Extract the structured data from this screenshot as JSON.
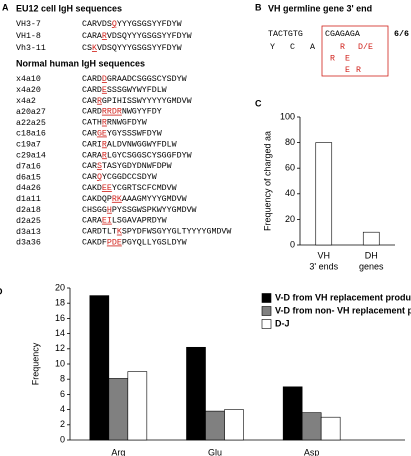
{
  "panel_labels": [
    "A",
    "B",
    "C",
    "D"
  ],
  "panel_a": {
    "eu12_title": "EU12 cell IgH sequences",
    "eu12_rows": [
      {
        "name": "VH3-7",
        "parts": [
          "CARVDS",
          "Q",
          "YYYGSGSYYFDYW"
        ]
      },
      {
        "name": "VH1-8",
        "parts": [
          "CARA",
          "R",
          "VDSQYYYGSGSYYFDYW"
        ]
      },
      {
        "name": "Vh3-11",
        "parts": [
          "CS",
          "K",
          "VDSQYYYGSGSYYFDYW"
        ]
      }
    ],
    "normal_title": "Normal human IgH sequences",
    "normal_rows": [
      {
        "name": "x4a10",
        "parts": [
          "CARD",
          "D",
          "GRAADCSGGSCYSDYW"
        ]
      },
      {
        "name": "x4a20",
        "parts": [
          "CARD",
          "E",
          "SSSGWYWYFDLW"
        ]
      },
      {
        "name": "x4a2",
        "parts": [
          "CAR",
          "R",
          "GPIHISSWYYYYYGMDVW"
        ]
      },
      {
        "name": "a20a27",
        "parts": [
          "CARD",
          "RRDR",
          "NWGYYFDY"
        ]
      },
      {
        "name": "a22a25",
        "parts": [
          "CATH",
          "R",
          "RNWGFDYW"
        ]
      },
      {
        "name": "c18a16",
        "parts": [
          "CAR",
          "GE",
          "YGYSSSWFDYW"
        ]
      },
      {
        "name": "c19a7",
        "parts": [
          "CARI",
          "R",
          "ALDVNWGGWYFDLW"
        ]
      },
      {
        "name": "c29a14",
        "parts": [
          "CARA",
          "R",
          "LGYCSGGSCYSGGFDYW"
        ]
      },
      {
        "name": "d7a16",
        "parts": [
          "CAR",
          "S",
          "TASYGDYDNWFDPW"
        ]
      },
      {
        "name": "d6a15",
        "parts": [
          "CAR",
          "Q",
          "YCGGDCCSDYW"
        ]
      },
      {
        "name": "d4a26",
        "parts": [
          "CAKD",
          "EE",
          "YCGRTSCFCMDVW"
        ]
      },
      {
        "name": "d1a11",
        "parts": [
          "CAKDQP",
          "RK",
          "AAAGMYYYGMDVW"
        ]
      },
      {
        "name": "d2a18",
        "parts": [
          "CHSGG",
          "H",
          "PYSSGWSPKWYYGMDVW"
        ]
      },
      {
        "name": "d2a25",
        "parts": [
          "CARA",
          "EI",
          "LSGAVAPRDYW"
        ]
      },
      {
        "name": "d3a13",
        "parts": [
          "CARDTLT",
          "K",
          "SPYDFWSGYYGLTYYYYGMDVW"
        ]
      },
      {
        "name": "d3a36",
        "parts": [
          "CAKDF",
          "PDE",
          "PGYQLLYGSLDYW"
        ]
      }
    ]
  },
  "panel_b": {
    "title": "VH germline gene 3' end",
    "codons": "TACTGTG",
    "boxed": "CGAGAGA",
    "ratio": "6/6",
    "aa": [
      "Y",
      "C",
      "A"
    ],
    "red_rows": [
      [
        "R",
        "D/E"
      ],
      [
        "R",
        "E"
      ],
      [
        "E",
        "R"
      ]
    ]
  },
  "chart_data": [
    {
      "type": "bar",
      "ylabel": "Frequency of charged aa",
      "categories": [
        [
          "VH",
          "3' ends"
        ],
        [
          "DH",
          "genes"
        ]
      ],
      "values": [
        80,
        10
      ],
      "color": "#ffffff",
      "ylim": [
        0,
        100
      ],
      "yticks": [
        0,
        20,
        40,
        60,
        80,
        100
      ]
    },
    {
      "type": "grouped_bar",
      "ylabel": "Frequency",
      "categories": [
        "Arg",
        "Glu",
        "Asp"
      ],
      "series": [
        {
          "name": "V-D from VH replacement products",
          "color": "#000000",
          "values": [
            19,
            12.2,
            7
          ]
        },
        {
          "name": "V-D from non- VH replacement products",
          "color": "#808080",
          "values": [
            8.1,
            3.8,
            3.6
          ]
        },
        {
          "name": "D-J",
          "color": "#ffffff",
          "values": [
            9,
            4,
            3
          ]
        }
      ],
      "ylim": [
        0,
        20
      ],
      "yticks": [
        0,
        2,
        4,
        6,
        8,
        10,
        12,
        14,
        16,
        18,
        20
      ],
      "legend": "upper right"
    }
  ]
}
